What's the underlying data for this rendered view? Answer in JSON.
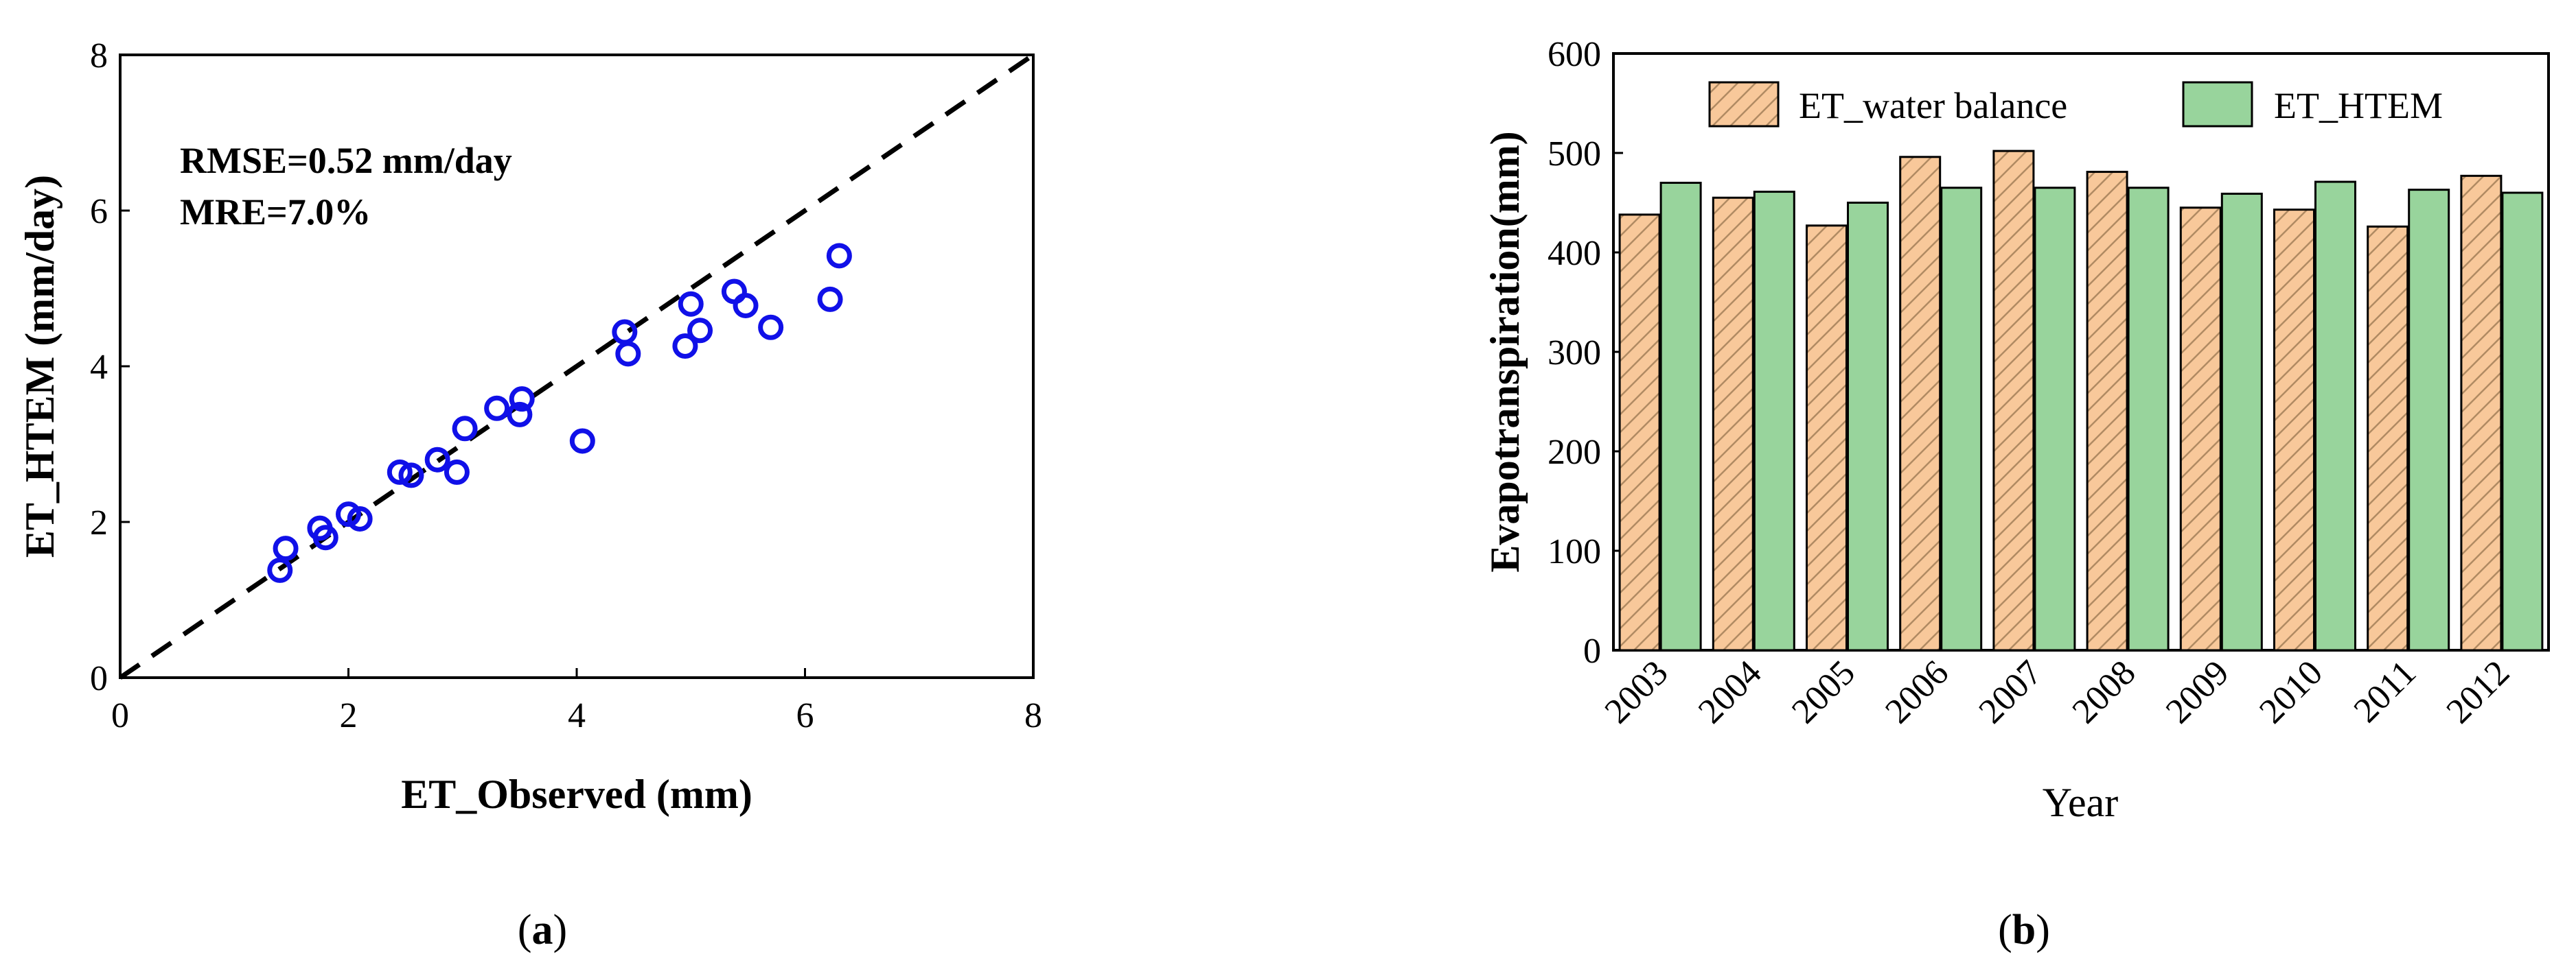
{
  "chart_data": [
    {
      "type": "scatter",
      "panel_label": "(a)",
      "panel_letter": "a",
      "xlabel": "ET_Observed (mm)",
      "ylabel": "ET_HTEM (mm/day)",
      "xlim": [
        0,
        8
      ],
      "ylim": [
        0,
        8
      ],
      "xticks": [
        "0",
        "2",
        "4",
        "6",
        "8"
      ],
      "yticks": [
        "0",
        "2",
        "4",
        "6",
        "8"
      ],
      "annotations": [
        "RMSE=0.52 mm/day",
        "MRE=7.0%"
      ],
      "reference_line": {
        "style": "dashed",
        "from": [
          0,
          0
        ],
        "to": [
          8,
          8
        ]
      },
      "marker": {
        "shape": "open-circle",
        "color": "#1010e8"
      },
      "points": [
        [
          1.4,
          1.38
        ],
        [
          1.45,
          1.66
        ],
        [
          1.75,
          1.92
        ],
        [
          1.8,
          1.8
        ],
        [
          2.0,
          2.1
        ],
        [
          2.1,
          2.04
        ],
        [
          2.45,
          2.64
        ],
        [
          2.55,
          2.6
        ],
        [
          2.78,
          2.8
        ],
        [
          2.95,
          2.64
        ],
        [
          3.02,
          3.2
        ],
        [
          3.3,
          3.46
        ],
        [
          3.5,
          3.38
        ],
        [
          3.52,
          3.58
        ],
        [
          4.05,
          3.04
        ],
        [
          4.42,
          4.44
        ],
        [
          4.45,
          4.16
        ],
        [
          4.95,
          4.26
        ],
        [
          5.0,
          4.8
        ],
        [
          5.08,
          4.46
        ],
        [
          5.38,
          4.96
        ],
        [
          5.48,
          4.78
        ],
        [
          5.7,
          4.5
        ],
        [
          6.22,
          4.86
        ],
        [
          6.3,
          5.42
        ]
      ]
    },
    {
      "type": "bar",
      "panel_label": "(b)",
      "panel_letter": "b",
      "xlabel": "Year",
      "ylabel": "Evapotranspiration(mm)",
      "ylim": [
        0,
        600
      ],
      "yticks": [
        "0",
        "100",
        "200",
        "300",
        "400",
        "500",
        "600"
      ],
      "categories": [
        "2003",
        "2004",
        "2005",
        "2006",
        "2007",
        "2008",
        "2009",
        "2010",
        "2011",
        "2012"
      ],
      "legend_position": "top",
      "series": [
        {
          "name": "ET_water balance",
          "color": "#f8c89a",
          "pattern": "hatched",
          "values": [
            438,
            455,
            427,
            496,
            502,
            481,
            445,
            443,
            426,
            477
          ]
        },
        {
          "name": "ET_HTEM",
          "color": "#98d49c",
          "pattern": "solid",
          "values": [
            470,
            461,
            450,
            465,
            465,
            465,
            459,
            471,
            463,
            460
          ]
        }
      ]
    }
  ]
}
